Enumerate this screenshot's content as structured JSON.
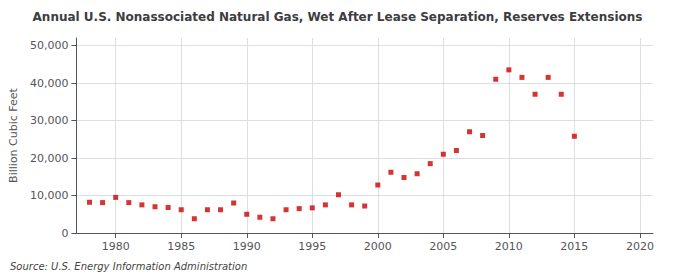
{
  "chart_data": {
    "type": "scatter",
    "title": "Annual U.S. Nonassociated Natural Gas, Wet After Lease Separation, Reserves Extensions",
    "ylabel": "Billion Cubic Feet",
    "annotations": [
      "Source: U.S. Energy Information Administration"
    ],
    "x": [
      1978,
      1979,
      1980,
      1981,
      1982,
      1983,
      1984,
      1985,
      1986,
      1987,
      1988,
      1989,
      1990,
      1991,
      1992,
      1993,
      1994,
      1995,
      1996,
      1997,
      1998,
      1999,
      2000,
      2001,
      2002,
      2003,
      2004,
      2005,
      2006,
      2007,
      2008,
      2009,
      2010,
      2011,
      2012,
      2013,
      2014,
      2015
    ],
    "values": [
      8200,
      8100,
      9500,
      8100,
      7500,
      7000,
      6800,
      6200,
      3800,
      6200,
      6200,
      8000,
      5000,
      4200,
      3800,
      6200,
      6500,
      6700,
      7500,
      10200,
      7500,
      7200,
      12800,
      16200,
      14800,
      15800,
      18500,
      21000,
      22000,
      27000,
      26000,
      41000,
      43500,
      41500,
      37000,
      41500,
      37000,
      25800
    ],
    "color": "#cc0000",
    "marker": "square",
    "xlim": [
      1977,
      2021
    ],
    "ylim": [
      0,
      52000
    ],
    "xticks": [
      1980,
      1985,
      1990,
      1995,
      2000,
      2005,
      2010,
      2015,
      2020
    ],
    "yticks": [
      0,
      {
        "value": 10000,
        "label": "10,000"
      },
      {
        "value": 20000,
        "label": "20,000"
      },
      {
        "value": 30000,
        "label": "30,000"
      },
      {
        "value": 40000,
        "label": "40,000"
      },
      {
        "value": 50000,
        "label": "50,000"
      }
    ],
    "grid": true
  }
}
